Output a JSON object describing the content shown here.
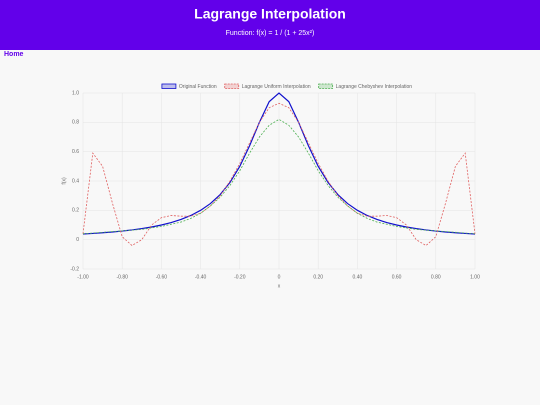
{
  "header": {
    "title": "Lagrange Interpolation",
    "subtitle": "Function: f(x) = 1 / (1 + 25x²)"
  },
  "nav": {
    "home": "Home"
  },
  "chart_data": {
    "type": "line",
    "xlabel": "x",
    "ylabel": "f(x)",
    "x": [
      -1,
      -0.95,
      -0.9,
      -0.85,
      -0.8,
      -0.75,
      -0.7,
      -0.65,
      -0.6,
      -0.55,
      -0.5,
      -0.45,
      -0.4,
      -0.35,
      -0.3,
      -0.25,
      -0.2,
      -0.15,
      -0.1,
      -0.05,
      0,
      0.05,
      0.1,
      0.15,
      0.2,
      0.25,
      0.3,
      0.35,
      0.4,
      0.45,
      0.5,
      0.55,
      0.6,
      0.65,
      0.7,
      0.75,
      0.8,
      0.85,
      0.9,
      0.95,
      1
    ],
    "series": [
      {
        "name": "Original Function",
        "color": "#1010cc",
        "dash": false,
        "values": [
          0.0385,
          0.0424,
          0.0471,
          0.0525,
          0.0588,
          0.0664,
          0.0755,
          0.0865,
          0.1,
          0.1168,
          0.1379,
          0.165,
          0.2,
          0.2462,
          0.3077,
          0.3902,
          0.5,
          0.64,
          0.8,
          0.9412,
          1,
          0.9412,
          0.8,
          0.64,
          0.5,
          0.3902,
          0.3077,
          0.2462,
          0.2,
          0.165,
          0.1379,
          0.1168,
          0.1,
          0.0865,
          0.0755,
          0.0664,
          0.0588,
          0.0525,
          0.0471,
          0.0424,
          0.0385
        ]
      },
      {
        "name": "Lagrange Uniform Interpolation",
        "color": "#e06060",
        "dash": true,
        "values": [
          0.04,
          0.59,
          0.5,
          0.25,
          0.02,
          -0.04,
          0.0,
          0.1,
          0.15,
          0.165,
          0.16,
          0.16,
          0.18,
          0.23,
          0.3,
          0.4,
          0.52,
          0.66,
          0.8,
          0.9,
          0.93,
          0.9,
          0.8,
          0.66,
          0.52,
          0.4,
          0.3,
          0.23,
          0.18,
          0.16,
          0.16,
          0.165,
          0.15,
          0.1,
          0.0,
          -0.04,
          0.02,
          0.25,
          0.5,
          0.59,
          0.04
        ]
      },
      {
        "name": "Lagrange Chebyshev Interpolation",
        "color": "#4caf50",
        "dash": true,
        "values": [
          0.04,
          0.045,
          0.05,
          0.055,
          0.06,
          0.065,
          0.07,
          0.08,
          0.09,
          0.105,
          0.12,
          0.145,
          0.18,
          0.23,
          0.29,
          0.37,
          0.47,
          0.59,
          0.7,
          0.78,
          0.82,
          0.78,
          0.7,
          0.59,
          0.47,
          0.37,
          0.29,
          0.23,
          0.18,
          0.145,
          0.12,
          0.105,
          0.09,
          0.08,
          0.07,
          0.065,
          0.06,
          0.055,
          0.05,
          0.045,
          0.04
        ]
      }
    ],
    "xlim": [
      -1,
      1
    ],
    "xticks": [
      {
        "value": -1,
        "label": "-1.00"
      },
      {
        "value": -0.8,
        "label": "-0.80"
      },
      {
        "value": -0.6,
        "label": "-0.60"
      },
      {
        "value": -0.4,
        "label": "-0.40"
      },
      {
        "value": -0.2,
        "label": "-0.20"
      },
      0,
      {
        "value": 0.2,
        "label": "0.20"
      },
      {
        "value": 0.4,
        "label": "0.40"
      },
      {
        "value": 0.6,
        "label": "0.60"
      },
      {
        "value": 0.8,
        "label": "0.80"
      },
      {
        "value": 1,
        "label": "1.00"
      }
    ],
    "ylim": [
      -0.2,
      1
    ],
    "yticks": [
      -0.2,
      0,
      0.2,
      0.4,
      0.6,
      0.8,
      {
        "value": 1,
        "label": "1.0"
      }
    ],
    "grid": true,
    "legend": "top"
  }
}
